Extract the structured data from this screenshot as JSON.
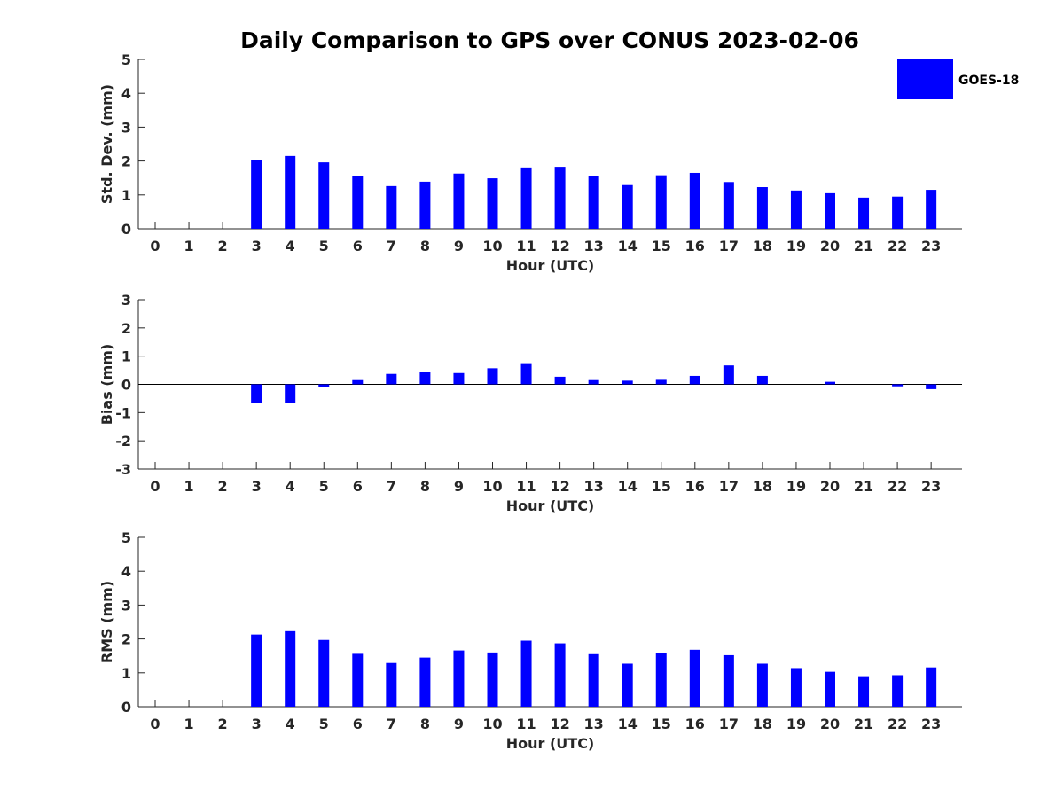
{
  "title": "Daily Comparison to GPS over CONUS 2023-02-06",
  "colors": {
    "bar": "#0000ff",
    "axis": "#262626"
  },
  "legend": {
    "label": "GOES-18",
    "placement": "top-right"
  },
  "chart_data": [
    {
      "type": "bar",
      "name": "std-dev",
      "xlabel": "Hour (UTC)",
      "ylabel": "Std. Dev. (mm)",
      "ylim": [
        0,
        5
      ],
      "yticks": [
        0,
        1,
        2,
        3,
        4,
        5
      ],
      "categories": [
        0,
        1,
        2,
        3,
        4,
        5,
        6,
        7,
        8,
        9,
        10,
        11,
        12,
        13,
        14,
        15,
        16,
        17,
        18,
        19,
        20,
        21,
        22,
        23
      ],
      "series": [
        {
          "name": "GOES-18",
          "values": [
            null,
            null,
            null,
            2.03,
            2.15,
            1.96,
            1.55,
            1.26,
            1.39,
            1.63,
            1.49,
            1.81,
            1.83,
            1.55,
            1.29,
            1.58,
            1.65,
            1.38,
            1.23,
            1.13,
            1.05,
            0.92,
            0.95,
            1.15
          ]
        }
      ],
      "grid": false
    },
    {
      "type": "bar",
      "name": "bias",
      "xlabel": "Hour (UTC)",
      "ylabel": "Bias (mm)",
      "ylim": [
        -3,
        3
      ],
      "yticks": [
        -3,
        -2,
        -1,
        0,
        1,
        2,
        3
      ],
      "zero_line": true,
      "categories": [
        0,
        1,
        2,
        3,
        4,
        5,
        6,
        7,
        8,
        9,
        10,
        11,
        12,
        13,
        14,
        15,
        16,
        17,
        18,
        19,
        20,
        21,
        22,
        23
      ],
      "series": [
        {
          "name": "GOES-18",
          "values": [
            null,
            null,
            null,
            -0.65,
            -0.65,
            -0.1,
            0.15,
            0.37,
            0.43,
            0.4,
            0.57,
            0.75,
            0.27,
            0.15,
            0.13,
            0.16,
            0.3,
            0.67,
            0.3,
            0,
            0.09,
            0,
            -0.07,
            -0.17
          ]
        }
      ],
      "grid": false
    },
    {
      "type": "bar",
      "name": "rms",
      "xlabel": "Hour (UTC)",
      "ylabel": "RMS (mm)",
      "ylim": [
        0,
        5
      ],
      "yticks": [
        0,
        1,
        2,
        3,
        4,
        5
      ],
      "categories": [
        0,
        1,
        2,
        3,
        4,
        5,
        6,
        7,
        8,
        9,
        10,
        11,
        12,
        13,
        14,
        15,
        16,
        17,
        18,
        19,
        20,
        21,
        22,
        23
      ],
      "series": [
        {
          "name": "GOES-18",
          "values": [
            null,
            null,
            null,
            2.13,
            2.23,
            1.97,
            1.56,
            1.29,
            1.45,
            1.66,
            1.6,
            1.95,
            1.87,
            1.55,
            1.27,
            1.59,
            1.68,
            1.52,
            1.27,
            1.14,
            1.03,
            0.9,
            0.93,
            1.16
          ]
        }
      ],
      "grid": false
    }
  ]
}
